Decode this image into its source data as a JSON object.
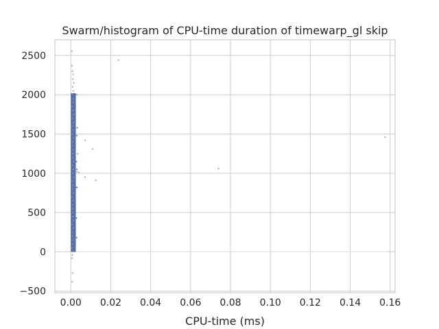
{
  "chart_data": {
    "type": "scatter",
    "title": "Swarm/histogram of CPU-time duration of timewarp_gl skip",
    "xlabel": "CPU-time (ms)",
    "ylabel": "",
    "xlim": [
      -0.008,
      0.1625
    ],
    "ylim": [
      -520,
      2700
    ],
    "x_ticks": [
      "0.00",
      "0.02",
      "0.04",
      "0.06",
      "0.08",
      "0.10",
      "0.12",
      "0.14",
      "0.16"
    ],
    "x_tick_values": [
      0.0,
      0.02,
      0.04,
      0.06,
      0.08,
      0.1,
      0.12,
      0.14,
      0.16
    ],
    "y_ticks": [
      "−500",
      "0",
      "500",
      "1000",
      "1500",
      "2000",
      "2500"
    ],
    "y_tick_values": [
      -500,
      0,
      500,
      1000,
      1500,
      2000,
      2500
    ],
    "grid": true,
    "legend": "none",
    "histogram": {
      "color": "#4c72b0",
      "bins": [
        {
          "x0": 0.0,
          "x1": 0.0025,
          "count": 2020
        }
      ],
      "baseline_x_end": 0.1585
    },
    "series": [
      {
        "color": "#dd8452",
        "points": [
          {
            "x": 0.0005,
            "y": 2555
          },
          {
            "x": 0.0006,
            "y": 2370
          },
          {
            "x": 0.0008,
            "y": 2300
          },
          {
            "x": 0.0012,
            "y": 2260
          },
          {
            "x": 0.001,
            "y": 2200
          },
          {
            "x": 0.0015,
            "y": 2150
          },
          {
            "x": 0.0009,
            "y": 2100
          },
          {
            "x": 0.0012,
            "y": 2050
          },
          {
            "x": 0.0007,
            "y": 2010
          },
          {
            "x": 0.0011,
            "y": 1950
          },
          {
            "x": 0.0013,
            "y": 1900
          },
          {
            "x": 0.0006,
            "y": 1850
          },
          {
            "x": 0.001,
            "y": 1800
          },
          {
            "x": 0.0014,
            "y": 1750
          },
          {
            "x": 0.0008,
            "y": 1700
          },
          {
            "x": 0.0012,
            "y": 1650
          },
          {
            "x": 0.0009,
            "y": 1600
          },
          {
            "x": 0.0011,
            "y": 1550
          },
          {
            "x": 0.0007,
            "y": 1500
          },
          {
            "x": 0.0013,
            "y": 1450
          },
          {
            "x": 0.001,
            "y": 1400
          },
          {
            "x": 0.0008,
            "y": 1350
          },
          {
            "x": 0.0012,
            "y": 1300
          },
          {
            "x": 0.0011,
            "y": 1250
          },
          {
            "x": 0.0009,
            "y": 1200
          },
          {
            "x": 0.0013,
            "y": 1150
          },
          {
            "x": 0.0007,
            "y": 1100
          },
          {
            "x": 0.0012,
            "y": 1050
          },
          {
            "x": 0.001,
            "y": 1000
          },
          {
            "x": 0.0014,
            "y": 950
          },
          {
            "x": 0.0008,
            "y": 900
          },
          {
            "x": 0.0011,
            "y": 850
          },
          {
            "x": 0.0009,
            "y": 800
          },
          {
            "x": 0.0013,
            "y": 750
          },
          {
            "x": 0.0007,
            "y": 700
          },
          {
            "x": 0.0012,
            "y": 650
          },
          {
            "x": 0.001,
            "y": 600
          },
          {
            "x": 0.0008,
            "y": 550
          },
          {
            "x": 0.0011,
            "y": 500
          },
          {
            "x": 0.0009,
            "y": 450
          },
          {
            "x": 0.0013,
            "y": 400
          },
          {
            "x": 0.0007,
            "y": 350
          },
          {
            "x": 0.0012,
            "y": 300
          },
          {
            "x": 0.001,
            "y": 250
          },
          {
            "x": 0.0008,
            "y": 200
          },
          {
            "x": 0.0011,
            "y": 150
          },
          {
            "x": 0.0009,
            "y": 100
          },
          {
            "x": 0.0006,
            "y": 50
          },
          {
            "x": 0.001,
            "y": 0
          },
          {
            "x": 0.0008,
            "y": -40
          },
          {
            "x": 0.0006,
            "y": -80
          },
          {
            "x": 0.0009,
            "y": -270
          },
          {
            "x": 0.0007,
            "y": -380
          },
          {
            "x": 0.003,
            "y": 2000
          },
          {
            "x": 0.0035,
            "y": 1250
          },
          {
            "x": 0.003,
            "y": 1020
          },
          {
            "x": 0.004,
            "y": 1010
          },
          {
            "x": 0.0072,
            "y": 1420
          },
          {
            "x": 0.0072,
            "y": 950
          },
          {
            "x": 0.011,
            "y": 1310
          },
          {
            "x": 0.0125,
            "y": 910
          },
          {
            "x": 0.0238,
            "y": 2440
          },
          {
            "x": 0.074,
            "y": 1060
          },
          {
            "x": 0.1575,
            "y": 1460
          }
        ]
      },
      {
        "color": "#4c72b0",
        "points": [
          {
            "x": 0.0032,
            "y": 1580
          },
          {
            "x": 0.003,
            "y": 1480
          },
          {
            "x": 0.0028,
            "y": 1150
          },
          {
            "x": 0.003,
            "y": 1050
          },
          {
            "x": 0.0027,
            "y": 820
          },
          {
            "x": 0.0031,
            "y": 820
          },
          {
            "x": 0.0028,
            "y": 430
          },
          {
            "x": 0.0029,
            "y": 180
          }
        ]
      }
    ]
  }
}
